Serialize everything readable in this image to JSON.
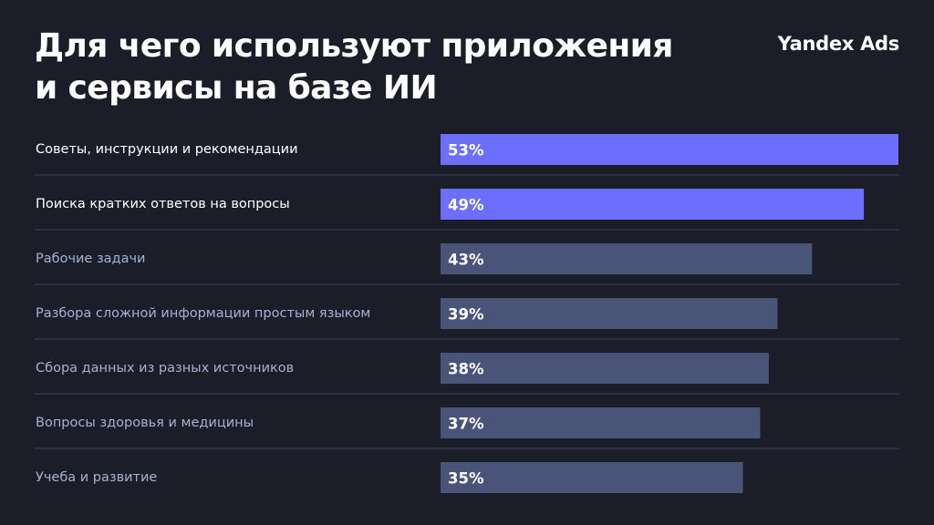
{
  "header": {
    "title_line1": "Для чего используют приложения",
    "title_line2": "и сервисы на базе ИИ",
    "brand": "Yandex Ads"
  },
  "colors": {
    "background": "#1b1d29",
    "highlight_bar": "#6b6ffc",
    "regular_bar": "#4a5478",
    "highlight_label": "#ffffff",
    "regular_label": "#a7b1d3",
    "divider": "#3c4258"
  },
  "chart_data": {
    "type": "bar",
    "orientation": "horizontal",
    "categories": [
      "Советы, инструкции и рекомендации",
      "Поиска кратких ответов на вопросы",
      "Рабочие задачи",
      "Разбора сложной информации простым языком",
      "Сбора данных из разных источников",
      "Вопросы здоровья и медицины",
      "Учеба и развитие"
    ],
    "values": [
      53,
      49,
      43,
      39,
      38,
      37,
      35
    ],
    "value_labels": [
      "53%",
      "49%",
      "43%",
      "39%",
      "38%",
      "37%",
      "35%"
    ],
    "highlighted": [
      true,
      true,
      false,
      false,
      false,
      false,
      false
    ],
    "title": "Для чего используют приложения и сервисы на базе ИИ",
    "xlim": [
      0,
      53
    ],
    "grid": false,
    "legend": "none"
  }
}
